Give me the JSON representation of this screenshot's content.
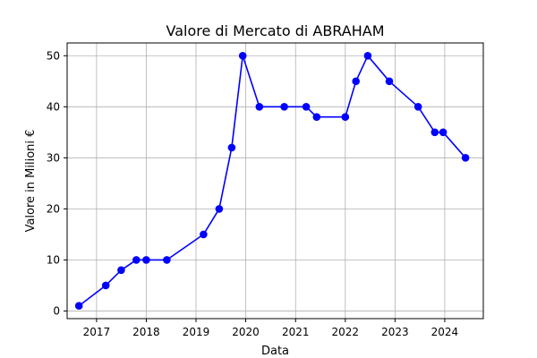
{
  "chart_data": {
    "type": "line",
    "title": "Valore di Mercato di ABRAHAM",
    "xlabel": "Data",
    "ylabel": "Valore in Milioni €",
    "x_ticks": [
      "2017",
      "2018",
      "2019",
      "2020",
      "2021",
      "2022",
      "2023",
      "2024"
    ],
    "y_ticks": [
      "0",
      "10",
      "20",
      "30",
      "40",
      "50"
    ],
    "ylim": [
      -1.5,
      52.5
    ],
    "xlim": [
      "2016-05-30",
      "2024-10-10"
    ],
    "grid": true,
    "series": [
      {
        "color": "#0000ff",
        "marker": "circle",
        "points": [
          {
            "x": "2016-08-25",
            "y": 1
          },
          {
            "x": "2017-03-10",
            "y": 5
          },
          {
            "x": "2017-07-01",
            "y": 8
          },
          {
            "x": "2017-10-20",
            "y": 10
          },
          {
            "x": "2018-01-01",
            "y": 10
          },
          {
            "x": "2018-06-01",
            "y": 10
          },
          {
            "x": "2019-02-25",
            "y": 15
          },
          {
            "x": "2019-06-20",
            "y": 20
          },
          {
            "x": "2019-09-20",
            "y": 32
          },
          {
            "x": "2019-12-10",
            "y": 50
          },
          {
            "x": "2020-04-10",
            "y": 40
          },
          {
            "x": "2020-10-10",
            "y": 40
          },
          {
            "x": "2021-03-20",
            "y": 40
          },
          {
            "x": "2021-06-05",
            "y": 38
          },
          {
            "x": "2022-01-01",
            "y": 38
          },
          {
            "x": "2022-03-20",
            "y": 45
          },
          {
            "x": "2022-06-15",
            "y": 50
          },
          {
            "x": "2022-11-20",
            "y": 45
          },
          {
            "x": "2023-06-20",
            "y": 40
          },
          {
            "x": "2023-10-20",
            "y": 35
          },
          {
            "x": "2023-12-20",
            "y": 35
          },
          {
            "x": "2024-06-01",
            "y": 30
          }
        ]
      }
    ]
  }
}
